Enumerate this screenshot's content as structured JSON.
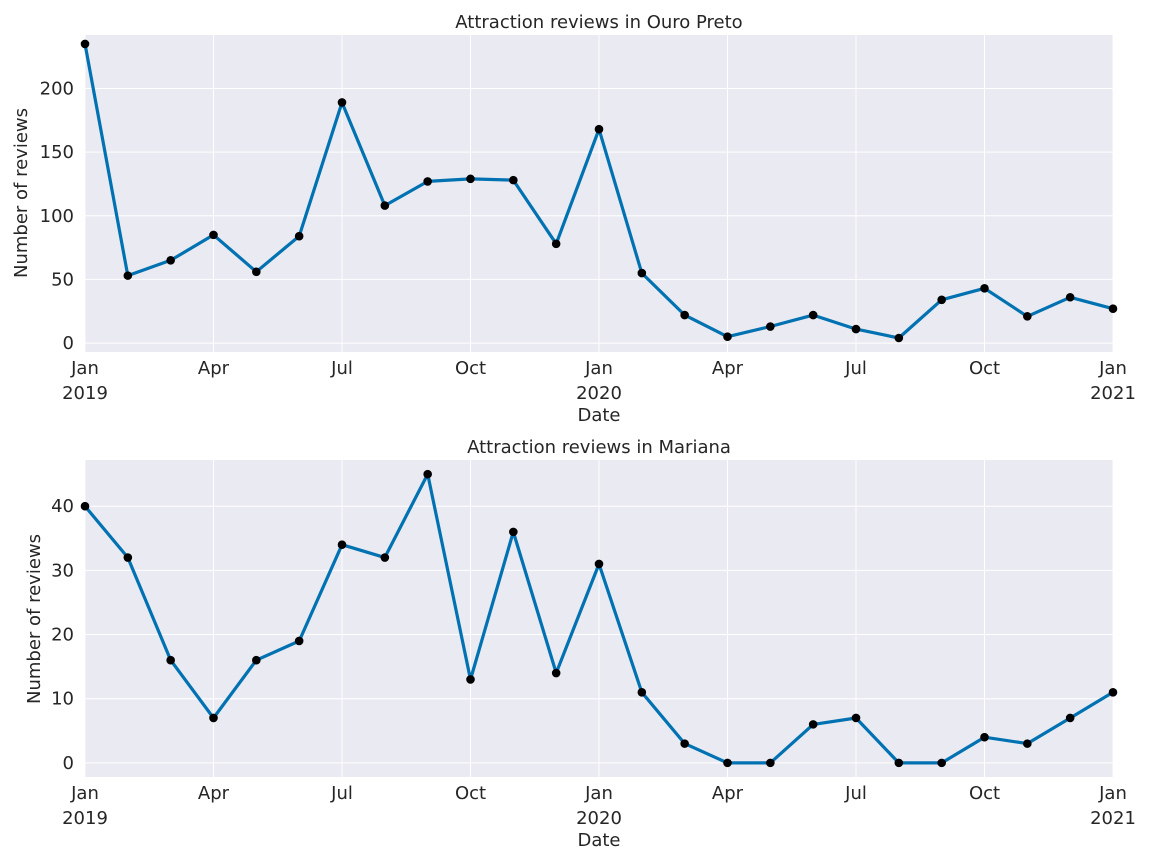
{
  "figure": {
    "colors": {
      "line": "#0072b2",
      "marker": "#000000",
      "plot_bg": "#eaeaf2",
      "grid": "#ffffff"
    }
  },
  "chart_data": [
    {
      "type": "line",
      "title": "Attraction reviews in Ouro Preto",
      "xlabel": "Date",
      "ylabel": "Number of reviews",
      "x": [
        "2019-01",
        "2019-02",
        "2019-03",
        "2019-04",
        "2019-05",
        "2019-06",
        "2019-07",
        "2019-08",
        "2019-09",
        "2019-10",
        "2019-11",
        "2019-12",
        "2020-01",
        "2020-02",
        "2020-03",
        "2020-04",
        "2020-05",
        "2020-06",
        "2020-07",
        "2020-08",
        "2020-09",
        "2020-10",
        "2020-11",
        "2020-12",
        "2021-01"
      ],
      "values": [
        235,
        53,
        65,
        85,
        56,
        84,
        189,
        108,
        127,
        129,
        128,
        78,
        168,
        55,
        22,
        5,
        13,
        22,
        11,
        4,
        34,
        43,
        21,
        36,
        27
      ],
      "ylim": [
        -7,
        242
      ],
      "yticks": [
        0,
        50,
        100,
        150,
        200
      ],
      "xticks": [
        {
          "month": 0,
          "line1": "Jan",
          "line2": "2019"
        },
        {
          "month": 3,
          "line1": "Apr",
          "line2": ""
        },
        {
          "month": 6,
          "line1": "Jul",
          "line2": ""
        },
        {
          "month": 9,
          "line1": "Oct",
          "line2": ""
        },
        {
          "month": 12,
          "line1": "Jan",
          "line2": "2020"
        },
        {
          "month": 15,
          "line1": "Apr",
          "line2": ""
        },
        {
          "month": 18,
          "line1": "Jul",
          "line2": ""
        },
        {
          "month": 21,
          "line1": "Oct",
          "line2": ""
        },
        {
          "month": 24,
          "line1": "Jan",
          "line2": "2021"
        }
      ],
      "grid": true,
      "marker": "circle"
    },
    {
      "type": "line",
      "title": "Attraction reviews in Mariana",
      "xlabel": "Date",
      "ylabel": "Number of reviews",
      "x": [
        "2019-01",
        "2019-02",
        "2019-03",
        "2019-04",
        "2019-05",
        "2019-06",
        "2019-07",
        "2019-08",
        "2019-09",
        "2019-10",
        "2019-11",
        "2019-12",
        "2020-01",
        "2020-02",
        "2020-03",
        "2020-04",
        "2020-05",
        "2020-06",
        "2020-07",
        "2020-08",
        "2020-09",
        "2020-10",
        "2020-11",
        "2020-12",
        "2021-01"
      ],
      "values": [
        40,
        32,
        16,
        7,
        16,
        19,
        34,
        32,
        45,
        13,
        36,
        14,
        31,
        11,
        3,
        0,
        0,
        6,
        7,
        0,
        0,
        4,
        3,
        7,
        11
      ],
      "ylim": [
        -2.2,
        47.2
      ],
      "yticks": [
        0,
        10,
        20,
        30,
        40
      ],
      "xticks": [
        {
          "month": 0,
          "line1": "Jan",
          "line2": "2019"
        },
        {
          "month": 3,
          "line1": "Apr",
          "line2": ""
        },
        {
          "month": 6,
          "line1": "Jul",
          "line2": ""
        },
        {
          "month": 9,
          "line1": "Oct",
          "line2": ""
        },
        {
          "month": 12,
          "line1": "Jan",
          "line2": "2020"
        },
        {
          "month": 15,
          "line1": "Apr",
          "line2": ""
        },
        {
          "month": 18,
          "line1": "Jul",
          "line2": ""
        },
        {
          "month": 21,
          "line1": "Oct",
          "line2": ""
        },
        {
          "month": 24,
          "line1": "Jan",
          "line2": "2021"
        }
      ],
      "grid": true,
      "marker": "circle"
    }
  ]
}
